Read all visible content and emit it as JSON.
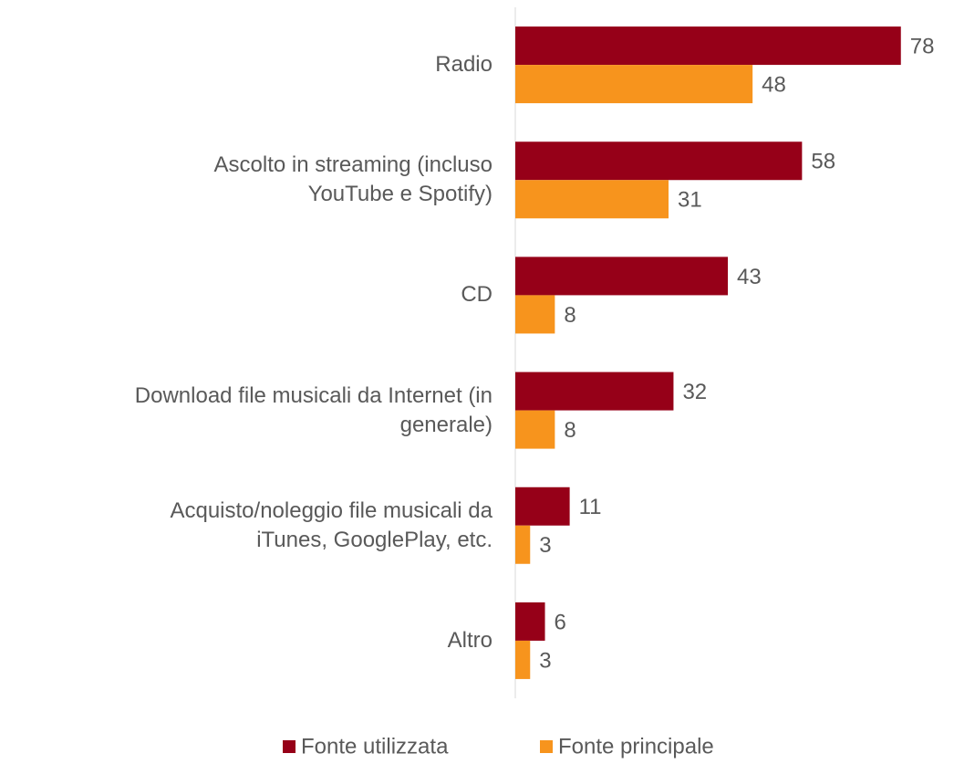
{
  "chart_data": {
    "type": "hbar",
    "categories": [
      "Radio",
      "Ascolto in streaming (incluso\nYouTube e Spotify)",
      "CD",
      "Download file musicali da Internet (in\ngenerale)",
      "Acquisto/noleggio file musicali da\niTunes, GooglePlay, etc.",
      "Altro"
    ],
    "series": [
      {
        "name": "Fonte utilizzata",
        "color": "#960018",
        "values": [
          78,
          58,
          43,
          32,
          11,
          6
        ]
      },
      {
        "name": "Fonte principale",
        "color": "#f7941d",
        "values": [
          48,
          31,
          8,
          8,
          3,
          3
        ]
      }
    ],
    "xlim": [
      0,
      80
    ],
    "legend": "bottom"
  }
}
